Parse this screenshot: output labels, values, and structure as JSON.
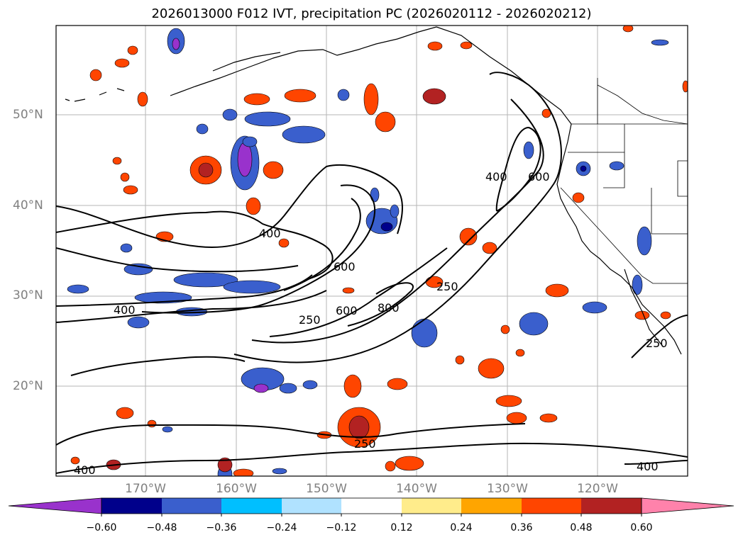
{
  "title": "2026013000 F012 IVT, precipitation PC (2026020112 - 2026020212)",
  "lat_labels": [
    "50°N",
    "40°N",
    "30°N",
    "20°N"
  ],
  "lon_labels": [
    "170°W",
    "160°W",
    "150°W",
    "140°W",
    "130°W",
    "120°W"
  ],
  "colorbar": {
    "tick_labels": [
      "−0.60",
      "−0.48",
      "−0.36",
      "−0.24",
      "−0.12",
      "0.12",
      "0.24",
      "0.36",
      "0.48",
      "0.60"
    ],
    "colors": [
      "#9932CC",
      "#00008B",
      "#3A5FCD",
      "#00BFFF",
      "#B0E2FF",
      "#FFFFFF",
      "#FFEC8B",
      "#FFA500",
      "#FF4500",
      "#B22222",
      "#FF82AB"
    ]
  },
  "ivt_contour_labels": [
    "400",
    "600",
    "400",
    "600",
    "250",
    "600",
    "800",
    "250",
    "400",
    "250",
    "250",
    "400",
    "400"
  ]
}
